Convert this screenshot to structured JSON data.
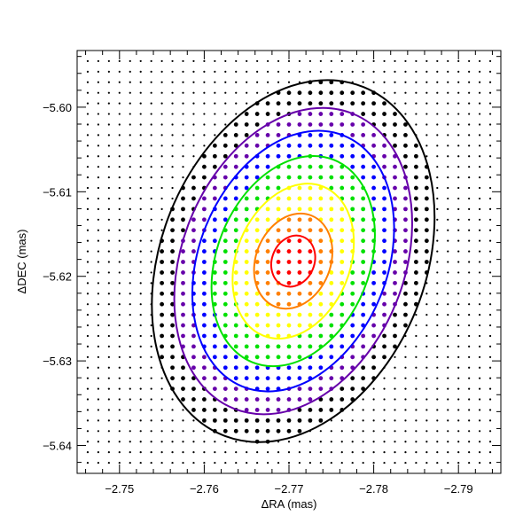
{
  "chart_data": {
    "type": "scatter",
    "xlabel": "ΔRA (mas)",
    "ylabel": "ΔDEC (mas)",
    "xlim": [
      -2.745,
      -2.795
    ],
    "ylim": [
      -5.6433,
      -5.5933
    ],
    "x_reversed": true,
    "xticks": [
      -2.75,
      -2.76,
      -2.77,
      -2.78,
      -2.79
    ],
    "xtick_labels": [
      "−2.75",
      "−2.76",
      "−2.77",
      "−2.78",
      "−2.79"
    ],
    "yticks": [
      -5.64,
      -5.63,
      -5.62,
      -5.61,
      -5.6
    ],
    "ytick_labels": [
      "−5.64",
      "−5.63",
      "−5.62",
      "−5.61",
      "−5.60"
    ],
    "grid": {
      "x_start": -2.745,
      "x_end": -2.795,
      "x_step": -0.00125,
      "y_start": -5.5933,
      "y_end": -5.6433,
      "y_step": -0.00125
    },
    "contours": {
      "center": [
        -2.7705,
        -5.6182
      ],
      "tilt_deg": 22,
      "levels": [
        {
          "name": "level-1",
          "color": "#ff0000",
          "semi_major": 0.0031,
          "semi_minor": 0.0025
        },
        {
          "name": "level-2",
          "color": "#ff7f00",
          "semi_major": 0.0058,
          "semi_minor": 0.0044
        },
        {
          "name": "level-3",
          "color": "#ffff00",
          "semi_major": 0.0095,
          "semi_minor": 0.0067
        },
        {
          "name": "level-4",
          "color": "#00e000",
          "semi_major": 0.0129,
          "semi_minor": 0.009
        },
        {
          "name": "level-5",
          "color": "#0000ff",
          "semi_major": 0.016,
          "semi_minor": 0.0111
        },
        {
          "name": "level-6",
          "color": "#6600aa",
          "semi_major": 0.0188,
          "semi_minor": 0.0131
        },
        {
          "name": "level-7",
          "color": "#000000",
          "semi_major": 0.0222,
          "semi_minor": 0.0156
        }
      ]
    }
  }
}
